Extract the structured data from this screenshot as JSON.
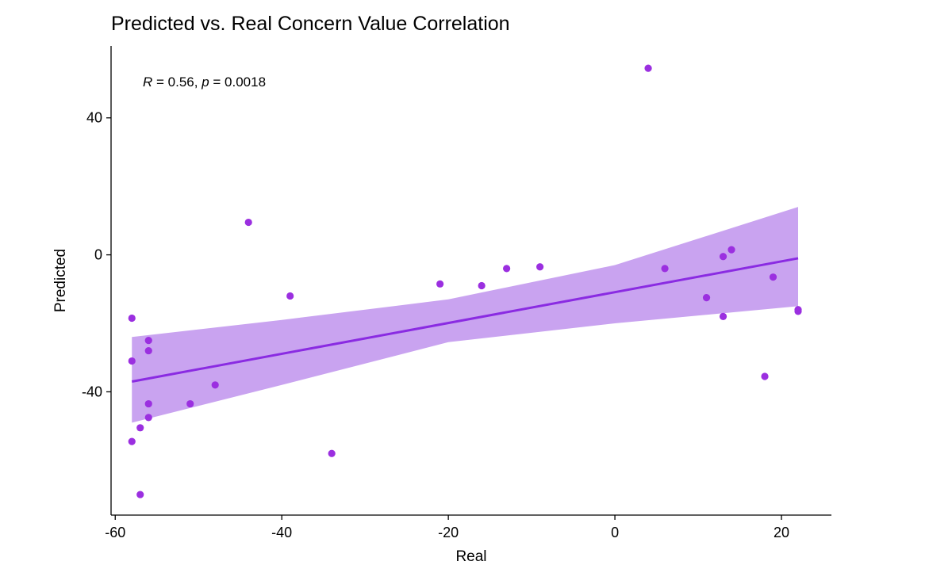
{
  "chart_data": {
    "type": "scatter",
    "title": "Predicted vs. Real Concern Value Correlation",
    "xlabel": "Real",
    "ylabel": "Predicted",
    "xlim": [
      -60.5,
      26
    ],
    "ylim": [
      -76,
      61
    ],
    "x_ticks": [
      -60,
      -40,
      -20,
      0,
      20
    ],
    "x_tick_labels": [
      "-60",
      "-40",
      "-20",
      "0",
      "20"
    ],
    "y_ticks": [
      -40,
      0,
      40
    ],
    "y_tick_labels": [
      "-40",
      "0",
      "40"
    ],
    "grid": false,
    "annotation": {
      "r_symbol": "R",
      "r_text": " = 0.56, ",
      "p_symbol": "p",
      "p_text": " = 0.0018"
    },
    "points": [
      {
        "x": -58,
        "y": -18.5
      },
      {
        "x": -58,
        "y": -31
      },
      {
        "x": -58,
        "y": -54.5
      },
      {
        "x": -57,
        "y": -50.5
      },
      {
        "x": -57,
        "y": -70
      },
      {
        "x": -56,
        "y": -25
      },
      {
        "x": -56,
        "y": -28
      },
      {
        "x": -56,
        "y": -43.5
      },
      {
        "x": -56,
        "y": -47.5
      },
      {
        "x": -51,
        "y": -43.5
      },
      {
        "x": -48,
        "y": -38
      },
      {
        "x": -44,
        "y": 9.5
      },
      {
        "x": -39,
        "y": -12
      },
      {
        "x": -34,
        "y": -58
      },
      {
        "x": -21,
        "y": -8.5
      },
      {
        "x": -16,
        "y": -9
      },
      {
        "x": -13,
        "y": -4
      },
      {
        "x": -9,
        "y": -3.5
      },
      {
        "x": 4,
        "y": 54.5
      },
      {
        "x": 6,
        "y": -4
      },
      {
        "x": 11,
        "y": -12.5
      },
      {
        "x": 13,
        "y": -0.5
      },
      {
        "x": 13,
        "y": -18
      },
      {
        "x": 14,
        "y": 1.5
      },
      {
        "x": 18,
        "y": -35.5
      },
      {
        "x": 19,
        "y": -6.5
      },
      {
        "x": 22,
        "y": -16
      },
      {
        "x": 22,
        "y": -16.5
      }
    ],
    "regression_line": {
      "x": [
        -58,
        22
      ],
      "y": [
        -37,
        -1
      ]
    },
    "confidence_band": {
      "x": [
        -58,
        -40,
        -20,
        0,
        22
      ],
      "lower": [
        -49,
        -38,
        -25.5,
        -20,
        -15
      ],
      "upper": [
        -24,
        -19,
        -13,
        -3,
        14
      ]
    },
    "colors": {
      "points": "#9b2fe0",
      "line": "#8a2be2",
      "band": "#c9a3f0"
    }
  }
}
